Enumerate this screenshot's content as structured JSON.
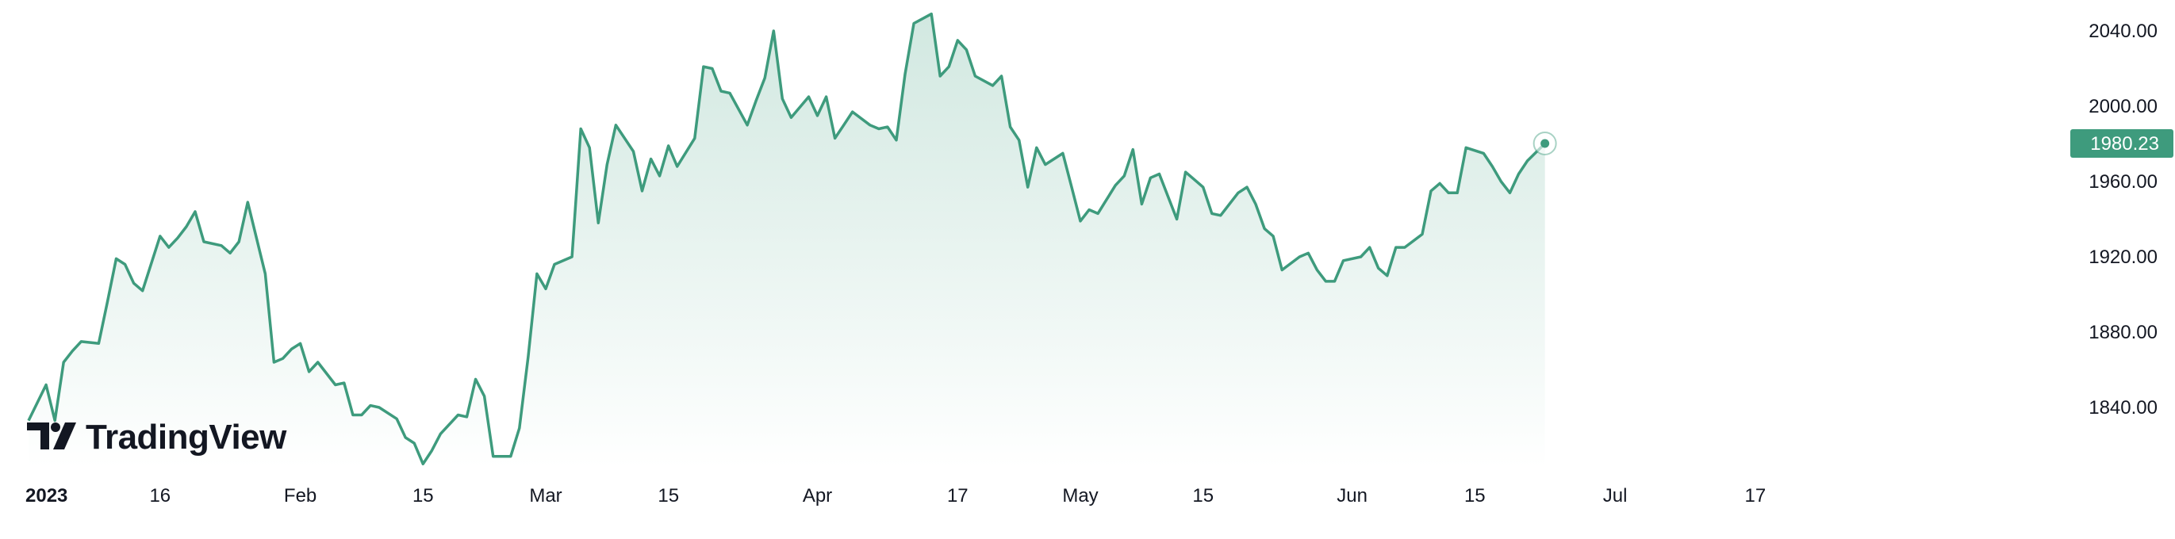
{
  "branding": {
    "name": "TradingView",
    "icon": "tradingview-logo-icon"
  },
  "colors": {
    "line": "#3e9b7d",
    "fill_top": "#cfe7df",
    "fill_bottom": "#ffffff",
    "badge": "#3e9b7d"
  },
  "chart_data": {
    "type": "area",
    "title": "",
    "xlabel": "",
    "ylabel": "",
    "ylim": [
      1810,
      2058
    ],
    "y_ticks": [
      "1840.00",
      "1880.00",
      "1920.00",
      "1960.00",
      "2000.00",
      "2040.00"
    ],
    "x_ticks": [
      {
        "label": "2023",
        "date": "2023-01-01",
        "bold": true
      },
      {
        "label": "16",
        "date": "2023-01-16"
      },
      {
        "label": "Feb",
        "date": "2023-02-01"
      },
      {
        "label": "15",
        "date": "2023-02-15"
      },
      {
        "label": "Mar",
        "date": "2023-03-01"
      },
      {
        "label": "15",
        "date": "2023-03-15"
      },
      {
        "label": "Apr",
        "date": "2023-04-01"
      },
      {
        "label": "17",
        "date": "2023-04-17"
      },
      {
        "label": "May",
        "date": "2023-05-01"
      },
      {
        "label": "15",
        "date": "2023-05-15"
      },
      {
        "label": "Jun",
        "date": "2023-06-01"
      },
      {
        "label": "15",
        "date": "2023-06-15"
      },
      {
        "label": "Jul",
        "date": "2023-07-01"
      },
      {
        "label": "17",
        "date": "2023-07-17"
      }
    ],
    "last_price": "1980.23",
    "series": [
      {
        "values": [
          [
            "2023-01-01",
            1833
          ],
          [
            "2023-01-03",
            1852
          ],
          [
            "2023-01-04",
            1833
          ],
          [
            "2023-01-05",
            1864
          ],
          [
            "2023-01-06",
            1870
          ],
          [
            "2023-01-07",
            1875
          ],
          [
            "2023-01-09",
            1874
          ],
          [
            "2023-01-10",
            1896
          ],
          [
            "2023-01-11",
            1919
          ],
          [
            "2023-01-12",
            1916
          ],
          [
            "2023-01-13",
            1906
          ],
          [
            "2023-01-14",
            1902
          ],
          [
            "2023-01-16",
            1931
          ],
          [
            "2023-01-17",
            1925
          ],
          [
            "2023-01-18",
            1930
          ],
          [
            "2023-01-19",
            1936
          ],
          [
            "2023-01-20",
            1944
          ],
          [
            "2023-01-21",
            1928
          ],
          [
            "2023-01-23",
            1926
          ],
          [
            "2023-01-24",
            1922
          ],
          [
            "2023-01-25",
            1928
          ],
          [
            "2023-01-26",
            1949
          ],
          [
            "2023-01-28",
            1911
          ],
          [
            "2023-01-29",
            1864
          ],
          [
            "2023-01-30",
            1866
          ],
          [
            "2023-01-31",
            1871
          ],
          [
            "2023-02-01",
            1874
          ],
          [
            "2023-02-02",
            1859
          ],
          [
            "2023-02-03",
            1864
          ],
          [
            "2023-02-05",
            1852
          ],
          [
            "2023-02-06",
            1853
          ],
          [
            "2023-02-07",
            1836
          ],
          [
            "2023-02-08",
            1836
          ],
          [
            "2023-02-09",
            1841
          ],
          [
            "2023-02-10",
            1840
          ],
          [
            "2023-02-12",
            1834
          ],
          [
            "2023-02-13",
            1824
          ],
          [
            "2023-02-14",
            1821
          ],
          [
            "2023-02-15",
            1810
          ],
          [
            "2023-02-16",
            1817
          ],
          [
            "2023-02-17",
            1826
          ],
          [
            "2023-02-19",
            1836
          ],
          [
            "2023-02-20",
            1835
          ],
          [
            "2023-02-21",
            1855
          ],
          [
            "2023-02-22",
            1846
          ],
          [
            "2023-02-23",
            1814
          ],
          [
            "2023-02-25",
            1814
          ],
          [
            "2023-02-26",
            1829
          ],
          [
            "2023-02-27",
            1867
          ],
          [
            "2023-02-28",
            1911
          ],
          [
            "2023-03-01",
            1903
          ],
          [
            "2023-03-02",
            1916
          ],
          [
            "2023-03-04",
            1920
          ],
          [
            "2023-03-05",
            1988
          ],
          [
            "2023-03-06",
            1978
          ],
          [
            "2023-03-07",
            1938
          ],
          [
            "2023-03-08",
            1969
          ],
          [
            "2023-03-09",
            1990
          ],
          [
            "2023-03-11",
            1976
          ],
          [
            "2023-03-12",
            1955
          ],
          [
            "2023-03-13",
            1972
          ],
          [
            "2023-03-14",
            1963
          ],
          [
            "2023-03-15",
            1979
          ],
          [
            "2023-03-16",
            1968
          ],
          [
            "2023-03-18",
            1983
          ],
          [
            "2023-03-19",
            2021
          ],
          [
            "2023-03-20",
            2020
          ],
          [
            "2023-03-21",
            2008
          ],
          [
            "2023-03-22",
            2007
          ],
          [
            "2023-03-24",
            1990
          ],
          [
            "2023-03-25",
            2003
          ],
          [
            "2023-03-26",
            2015
          ],
          [
            "2023-03-27",
            2040
          ],
          [
            "2023-03-28",
            2004
          ],
          [
            "2023-03-29",
            1994
          ],
          [
            "2023-03-31",
            2005
          ],
          [
            "2023-04-01",
            1995
          ],
          [
            "2023-04-02",
            2005
          ],
          [
            "2023-04-03",
            1983
          ],
          [
            "2023-04-04",
            1990
          ],
          [
            "2023-04-05",
            1997
          ],
          [
            "2023-04-07",
            1990
          ],
          [
            "2023-04-08",
            1988
          ],
          [
            "2023-04-09",
            1989
          ],
          [
            "2023-04-10",
            1982
          ],
          [
            "2023-04-11",
            2017
          ],
          [
            "2023-04-12",
            2044
          ],
          [
            "2023-04-14",
            2049
          ],
          [
            "2023-04-15",
            2016
          ],
          [
            "2023-04-16",
            2021
          ],
          [
            "2023-04-17",
            2035
          ],
          [
            "2023-04-18",
            2030
          ],
          [
            "2023-04-19",
            2016
          ],
          [
            "2023-04-21",
            2011
          ],
          [
            "2023-04-22",
            2016
          ],
          [
            "2023-04-23",
            1989
          ],
          [
            "2023-04-24",
            1982
          ],
          [
            "2023-04-25",
            1957
          ],
          [
            "2023-04-26",
            1978
          ],
          [
            "2023-04-27",
            1969
          ],
          [
            "2023-04-29",
            1975
          ],
          [
            "2023-04-30",
            1957
          ],
          [
            "2023-05-01",
            1939
          ],
          [
            "2023-05-02",
            1945
          ],
          [
            "2023-05-03",
            1943
          ],
          [
            "2023-05-05",
            1958
          ],
          [
            "2023-05-06",
            1963
          ],
          [
            "2023-05-07",
            1977
          ],
          [
            "2023-05-08",
            1948
          ],
          [
            "2023-05-09",
            1962
          ],
          [
            "2023-05-10",
            1964
          ],
          [
            "2023-05-12",
            1940
          ],
          [
            "2023-05-13",
            1965
          ],
          [
            "2023-05-14",
            1961
          ],
          [
            "2023-05-15",
            1957
          ],
          [
            "2023-05-16",
            1943
          ],
          [
            "2023-05-17",
            1942
          ],
          [
            "2023-05-19",
            1954
          ],
          [
            "2023-05-20",
            1957
          ],
          [
            "2023-05-21",
            1948
          ],
          [
            "2023-05-22",
            1935
          ],
          [
            "2023-05-23",
            1931
          ],
          [
            "2023-05-24",
            1913
          ],
          [
            "2023-05-26",
            1920
          ],
          [
            "2023-05-27",
            1922
          ],
          [
            "2023-05-28",
            1913
          ],
          [
            "2023-05-29",
            1907
          ],
          [
            "2023-05-30",
            1907
          ],
          [
            "2023-05-31",
            1918
          ],
          [
            "2023-06-02",
            1920
          ],
          [
            "2023-06-03",
            1925
          ],
          [
            "2023-06-04",
            1914
          ],
          [
            "2023-06-05",
            1910
          ],
          [
            "2023-06-06",
            1925
          ],
          [
            "2023-06-07",
            1925
          ],
          [
            "2023-06-09",
            1932
          ],
          [
            "2023-06-10",
            1955
          ],
          [
            "2023-06-11",
            1959
          ],
          [
            "2023-06-12",
            1954
          ],
          [
            "2023-06-13",
            1954
          ],
          [
            "2023-06-14",
            1978
          ],
          [
            "2023-06-16",
            1975
          ],
          [
            "2023-06-17",
            1968
          ],
          [
            "2023-06-18",
            1960
          ],
          [
            "2023-06-19",
            1954
          ],
          [
            "2023-06-20",
            1964
          ],
          [
            "2023-06-21",
            1971
          ],
          [
            "2023-06-23",
            1980.23
          ]
        ]
      }
    ]
  }
}
